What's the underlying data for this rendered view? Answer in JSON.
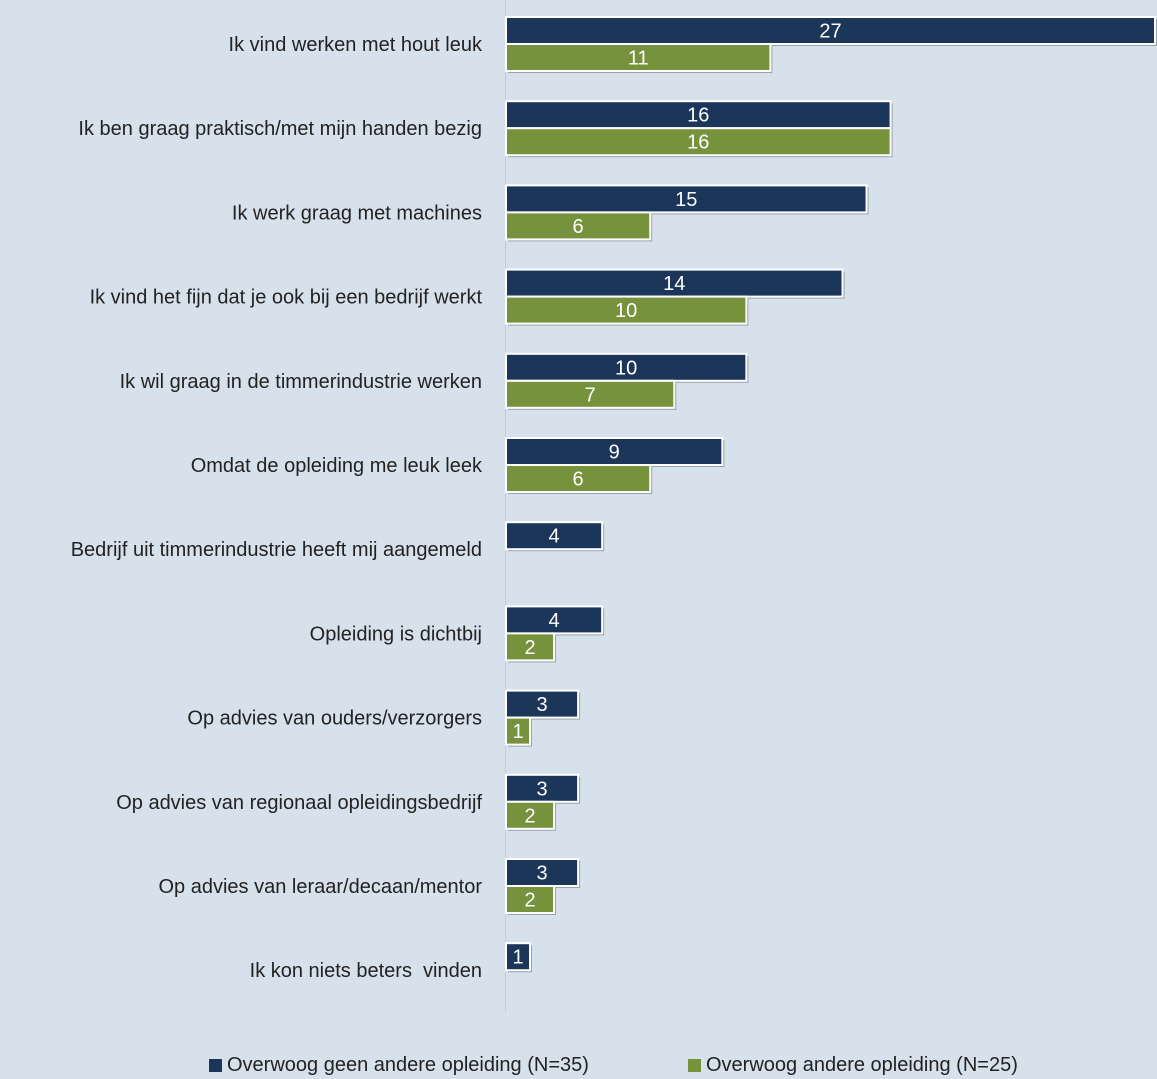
{
  "chart_data": {
    "type": "bar",
    "orientation": "horizontal",
    "categories": [
      "Ik vind werken met hout leuk",
      "Ik ben graag praktisch/met mijn handen bezig",
      "Ik werk graag met machines",
      "Ik vind het fijn dat je ook bij een bedrijf werkt",
      "Ik wil graag in de timmerindustrie werken",
      "Omdat de opleiding me leuk leek",
      "Bedrijf uit timmerindustrie heeft mij aangemeld",
      "Opleiding is dichtbij",
      "Op advies van ouders/verzorgers",
      "Op advies van regionaal opleidingsbedrijf",
      "Op advies van leraar/decaan/mentor",
      "Ik kon niets beters  vinden"
    ],
    "series": [
      {
        "name": "Overwoog geen andere opleiding (N=35)",
        "color": "#1b3659",
        "values": [
          27,
          16,
          15,
          14,
          10,
          9,
          4,
          4,
          3,
          3,
          3,
          1
        ]
      },
      {
        "name": "Overwoog andere opleiding (N=25)",
        "color": "#77923c",
        "values": [
          11,
          16,
          6,
          10,
          7,
          6,
          null,
          2,
          1,
          2,
          2,
          null
        ]
      }
    ],
    "xlim": [
      0,
      27
    ],
    "grid": false,
    "data_labels": true,
    "legend_position": "bottom"
  }
}
